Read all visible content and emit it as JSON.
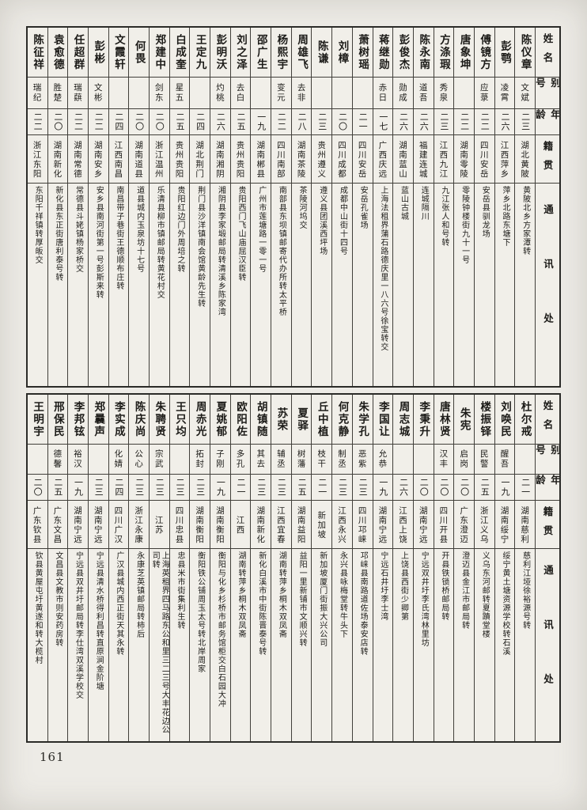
{
  "page": {
    "number": "161"
  },
  "header_labels": {
    "name": "姓名",
    "alias": "别号",
    "age": "年龄",
    "native": "籍贯",
    "contact": "通讯处"
  },
  "tables": [
    {
      "position": "top",
      "people": [
        {
          "name": "陈仪章",
          "alias": "文斌",
          "age": "二三",
          "native": "湖北黄陂",
          "address": "黄陂北乡方家潭转"
        },
        {
          "name": "彭鹗",
          "alias": "凌霄",
          "age": "二六",
          "native": "江西萍乡",
          "address": "萍乡北路东塘下"
        },
        {
          "name": "傅镜方",
          "alias": "应菉",
          "age": "二二",
          "native": "四川安岳",
          "address": "安岳县驯龙场"
        },
        {
          "name": "唐象坤",
          "alias": "",
          "age": "二二",
          "native": "湖南零陵",
          "address": "零陵钟楼街九十一号"
        },
        {
          "name": "方涤瑕",
          "alias": "秀泉",
          "age": "二三",
          "native": "江西九江",
          "address": "九江张人和号转"
        },
        {
          "name": "陈永南",
          "alias": "道吾",
          "age": "二六",
          "native": "福建连城",
          "address": "连城隔川"
        },
        {
          "name": "彭俊杰",
          "alias": "勋成",
          "age": "二六",
          "native": "湖南蓝山",
          "address": "蓝山古城"
        },
        {
          "name": "蒋继勋",
          "alias": "赤日",
          "age": "一七",
          "native": "广西庆远",
          "address": "上海法租界蒲石路德庆里一八六号徐宝转交"
        },
        {
          "name": "萧树瑶",
          "alias": "",
          "age": "二一",
          "native": "四川安岳",
          "address": "安岳孔雀场"
        },
        {
          "name": "刘樟",
          "alias": "",
          "age": "二〇",
          "native": "四川成都",
          "address": "成都中山街十四号"
        },
        {
          "name": "陈谦",
          "alias": "",
          "age": "二三",
          "native": "贵州遵义",
          "address": "遵义县团溪西坪场"
        },
        {
          "name": "周雄飞",
          "alias": "去非",
          "age": "二八",
          "native": "湖南茶陵",
          "address": "茶陵河坞交"
        },
        {
          "name": "杨熙宇",
          "alias": "变元",
          "age": "二二",
          "native": "四川南部",
          "address": "南部县东坝镇邮寄代办所转太平桥"
        },
        {
          "name": "邵广生",
          "alias": "",
          "age": "一九",
          "native": "湖南郴县",
          "address": "广州市莲塘路一零一号"
        },
        {
          "name": "刘之泽",
          "alias": "去白",
          "age": "二五",
          "native": "贵州贵阳",
          "address": "贵阳西门飞山庙屈汉臣转"
        },
        {
          "name": "彭明沃",
          "alias": "灼桃",
          "age": "二六",
          "native": "湖南湘阴",
          "address": "湘阴县李家塅邮局转清溪乡陈家湾"
        },
        {
          "name": "王定九",
          "alias": "",
          "age": "二四",
          "native": "湖北荆门",
          "address": "荆门县沙洋镇南会馆黄龄先生转"
        },
        {
          "name": "白成奎",
          "alias": "星五",
          "age": "二五",
          "native": "贵州贵阳",
          "address": "贵阳红边门外周培之转"
        },
        {
          "name": "郑建中",
          "alias": "剑东",
          "age": "二〇",
          "native": "浙江温州",
          "address": "乐清县柳市镇邮局转黄花村交"
        },
        {
          "name": "何畏",
          "alias": "",
          "age": "二〇",
          "native": "湖南道县",
          "address": "道县城内玉泉坊十七号"
        },
        {
          "name": "文霞轩",
          "alias": "",
          "age": "二四",
          "native": "江西南昌",
          "address": "南昌带子巷街王德顺布庄转"
        },
        {
          "name": "彭彬",
          "alias": "文彬",
          "age": "二二",
          "native": "湖南安乡",
          "address": "安乡县南河街第一号彭斯来转"
        },
        {
          "name": "任超群",
          "alias": "瑞蕻",
          "age": "二二",
          "native": "湖南常德",
          "address": "常德县斗姥镇杨家桥交"
        },
        {
          "name": "袁愈德",
          "alias": "胜楚",
          "age": "二〇",
          "native": "湖南新化",
          "address": "新化县东正街唐利泰号转"
        },
        {
          "name": "陈征祥",
          "alias": "瑞纪",
          "age": "二二",
          "native": "浙江东阳",
          "address": "东阳千祥镇转厚皈交"
        }
      ]
    },
    {
      "position": "bottom",
      "people": [
        {
          "name": "杜尔戒",
          "alias": "",
          "age": "二一",
          "native": "湖南慈利",
          "address": "慈利江垭徐裕源号转"
        },
        {
          "name": "刘唤民",
          "alias": "醒吾",
          "age": "一九",
          "native": "湖南绥宁",
          "address": "绥宁黄土塘资源学校转石溪"
        },
        {
          "name": "楼振铎",
          "alias": "民警",
          "age": "二五",
          "native": "浙江义乌",
          "address": "义乌东河邮转夏蹟堂楼"
        },
        {
          "name": "朱宪",
          "alias": "启岗",
          "age": "二〇",
          "native": "广东澄迈",
          "address": "澄迈县金江市邮局转"
        },
        {
          "name": "唐林贤",
          "alias": "汉丰",
          "age": "二〇",
          "native": "四川开县",
          "address": "开县铁锁桥邮局转"
        },
        {
          "name": "李秉升",
          "alias": "",
          "age": "二〇",
          "native": "湖南宁远",
          "address": "宁远双井圩李氏湾林里坊"
        },
        {
          "name": "周志城",
          "alias": "",
          "age": "二六",
          "native": "江西上饶",
          "address": "上饶县西街少卿第"
        },
        {
          "name": "李国让",
          "alias": "允恭",
          "age": "一九",
          "native": "湖南宁远",
          "address": "宁远石井圩李士湾"
        },
        {
          "name": "朱学孔",
          "alias": "恶紫",
          "age": "二三",
          "native": "四川邛崃",
          "address": "邛崃县南路道佐场泰安店转"
        },
        {
          "name": "何克静",
          "alias": "制丞",
          "age": "二三",
          "native": "江西永兴",
          "address": "永兴县咏梅堂转牛头下"
        },
        {
          "name": "丘中植",
          "alias": "枝干",
          "age": "二一",
          "native": "新加坡",
          "address": "新加坡厦门街振大兴公司"
        },
        {
          "name": "夏驿",
          "alias": "树藩",
          "age": "二五",
          "native": "湖南益阳",
          "address": "益阳一里新铺市文顺兴转"
        },
        {
          "name": "苏荣",
          "alias": "辅丞",
          "age": "二三",
          "native": "江西宜春",
          "address": "湖南转萍乡桐木双凤斋"
        },
        {
          "name": "胡镇随",
          "alias": "其去",
          "age": "二三",
          "native": "湖南新化",
          "address": "新化白溪市中街陈晋泰号转"
        },
        {
          "name": "欧阳佐",
          "alias": "多孔",
          "age": "二一",
          "native": "江西",
          "address": "湖南转萍乡桐木双凤斋"
        },
        {
          "name": "夏姚郁",
          "alias": "子刚",
          "age": "一九",
          "native": "湖南衡阳",
          "address": "衡阳与化乡杉桥市邮务馆柜交白石园大冲"
        },
        {
          "name": "周赤光",
          "alias": "拓封",
          "age": "二三",
          "native": "湖南衡阳",
          "address": "衡阳铁公铺周玉太号转北岸周家"
        },
        {
          "name": "王只均",
          "alias": "",
          "age": "二三",
          "native": "四川忠县",
          "address": "忠县米市街集利生转"
        },
        {
          "name": "朱聘贤",
          "alias": "宗武",
          "age": "二三",
          "native": "江苏",
          "address": "上海英租界四马路东公和里三二三号大丰花边公司转"
        },
        {
          "name": "陈庆尚",
          "alias": "公心",
          "age": "二三",
          "native": "浙江永康",
          "address": "永康芝英镇邮局转柿后"
        },
        {
          "name": "李实成",
          "alias": "化婧",
          "age": "二四",
          "native": "四川广汉",
          "address": "广汉县城内西正街天其永转"
        },
        {
          "name": "郑曩声",
          "alias": "",
          "age": "二三",
          "native": "湖南宁远",
          "address": "宁远县清水桥得利昌转直原涧金阶塘"
        },
        {
          "name": "李邦铉",
          "alias": "裕汉",
          "age": "一九",
          "native": "湖南宁远",
          "address": "宁远县双井圩邮局转李仕湾双溪学校交"
        },
        {
          "name": "邢保民",
          "alias": "德馨",
          "age": "二五",
          "native": "广东文昌",
          "address": "文昌县文教市则安药房转"
        },
        {
          "name": "王明宇",
          "alias": "",
          "age": "二〇",
          "native": "广东钦县",
          "address": "钦县黄屋屯圩黄遂和转大榄村"
        }
      ]
    }
  ]
}
